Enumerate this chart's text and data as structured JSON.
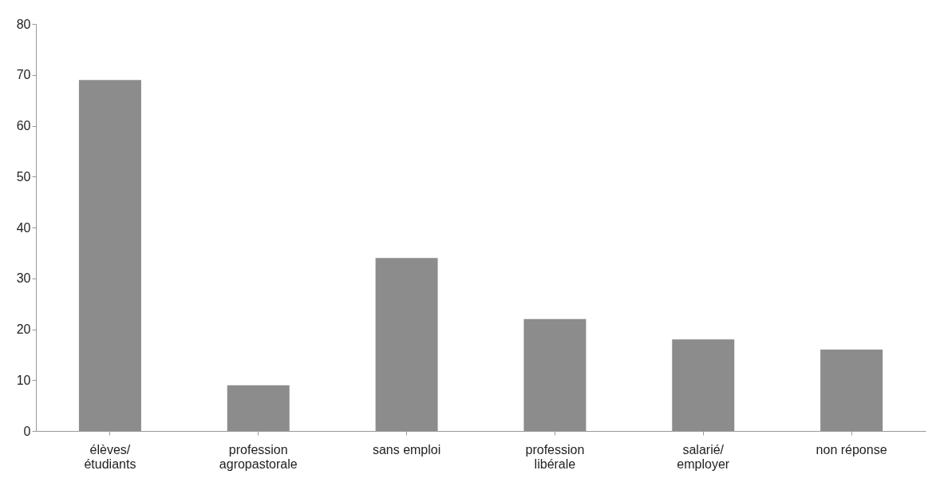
{
  "chart_data": {
    "type": "bar",
    "categories": [
      "élèves/ étudiants",
      "profession agropastorale",
      "sans emploi",
      "profession libérale",
      "salarié/ employer",
      "non réponse"
    ],
    "values": [
      69,
      9,
      34,
      22,
      18,
      16
    ],
    "color": "#8c8c8c",
    "ylim": [
      0,
      80
    ],
    "yticks": [
      0,
      10,
      20,
      30,
      40,
      50,
      60,
      70,
      80
    ],
    "grid": false
  }
}
